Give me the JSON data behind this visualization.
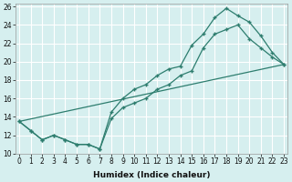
{
  "xlabel": "Humidex (Indice chaleur)",
  "bg_color": "#d6efef",
  "grid_color": "#ffffff",
  "line_color": "#2d7d6e",
  "line1_x": [
    0,
    1,
    2,
    3,
    4,
    5,
    6,
    7,
    8,
    9,
    10,
    11,
    12,
    13,
    14,
    15,
    16,
    17,
    18,
    19,
    20,
    21,
    22,
    23
  ],
  "line1_y": [
    13.5,
    12.5,
    11.5,
    12.0,
    11.5,
    11.0,
    11.0,
    10.5,
    13.8,
    15.0,
    15.5,
    16.0,
    17.0,
    17.5,
    18.5,
    19.0,
    21.5,
    23.0,
    23.5,
    24.0,
    22.5,
    21.5,
    20.5,
    19.7
  ],
  "line2_x": [
    0,
    1,
    2,
    3,
    4,
    5,
    6,
    7,
    8,
    9,
    10,
    11,
    12,
    13,
    14,
    15,
    16,
    17,
    18,
    19,
    20,
    21,
    22,
    23
  ],
  "line2_y": [
    13.5,
    12.5,
    11.5,
    12.0,
    11.5,
    11.0,
    11.0,
    10.5,
    14.5,
    16.0,
    17.0,
    17.5,
    18.5,
    19.2,
    19.5,
    21.8,
    23.0,
    24.8,
    25.8,
    25.0,
    24.3,
    22.8,
    21.0,
    19.7
  ],
  "line3_x": [
    0,
    23
  ],
  "line3_y": [
    13.5,
    19.7
  ],
  "ylim_min": 10,
  "ylim_max": 26,
  "xlim_min": 0,
  "xlim_max": 23,
  "yticks": [
    10,
    12,
    14,
    16,
    18,
    20,
    22,
    24,
    26
  ],
  "xticks": [
    0,
    1,
    2,
    3,
    4,
    5,
    6,
    7,
    8,
    9,
    10,
    11,
    12,
    13,
    14,
    15,
    16,
    17,
    18,
    19,
    20,
    21,
    22,
    23
  ]
}
